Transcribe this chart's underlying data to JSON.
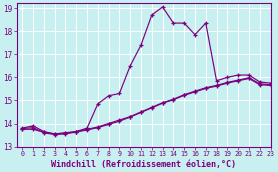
{
  "xlabel": "Windchill (Refroidissement éolien,°C)",
  "xlim": [
    -0.5,
    23
  ],
  "ylim": [
    13,
    19.2
  ],
  "xticks": [
    0,
    1,
    2,
    3,
    4,
    5,
    6,
    7,
    8,
    9,
    10,
    11,
    12,
    13,
    14,
    15,
    16,
    17,
    18,
    19,
    20,
    21,
    22,
    23
  ],
  "yticks": [
    13,
    14,
    15,
    16,
    17,
    18,
    19
  ],
  "bg_color": "#c8f0f0",
  "line_color": "#7b0080",
  "grid_color": "#ffffff",
  "line1_x": [
    0,
    1,
    2,
    3,
    4,
    5,
    6,
    7,
    8,
    9,
    10,
    11,
    12,
    13,
    14,
    15,
    16,
    17,
    18,
    19,
    20,
    21,
    22,
    23
  ],
  "line1_y": [
    13.8,
    13.9,
    13.65,
    13.55,
    13.6,
    13.65,
    13.8,
    14.85,
    15.2,
    15.3,
    16.5,
    17.4,
    18.7,
    19.05,
    18.35,
    18.35,
    17.85,
    18.35,
    15.85,
    16.0,
    16.1,
    16.1,
    15.8,
    15.75
  ],
  "line2_x": [
    0,
    1,
    2,
    3,
    4,
    5,
    6,
    7,
    8,
    9,
    10,
    11,
    12,
    13,
    14,
    15,
    16,
    17,
    18,
    19,
    20,
    21,
    22,
    23
  ],
  "line2_y": [
    13.75,
    13.75,
    13.62,
    13.55,
    13.58,
    13.65,
    13.75,
    13.85,
    14.0,
    14.15,
    14.3,
    14.5,
    14.7,
    14.9,
    15.05,
    15.25,
    15.4,
    15.55,
    15.65,
    15.78,
    15.88,
    15.98,
    15.72,
    15.68
  ],
  "line3_x": [
    0,
    1,
    2,
    3,
    4,
    5,
    6,
    7,
    8,
    9,
    10,
    11,
    12,
    13,
    14,
    15,
    16,
    17,
    18,
    19,
    20,
    21,
    22,
    23
  ],
  "line3_y": [
    13.78,
    13.82,
    13.6,
    13.52,
    13.55,
    13.63,
    13.72,
    13.82,
    13.96,
    14.1,
    14.28,
    14.48,
    14.68,
    14.88,
    15.03,
    15.22,
    15.37,
    15.52,
    15.62,
    15.75,
    15.85,
    15.95,
    15.68,
    15.65
  ]
}
